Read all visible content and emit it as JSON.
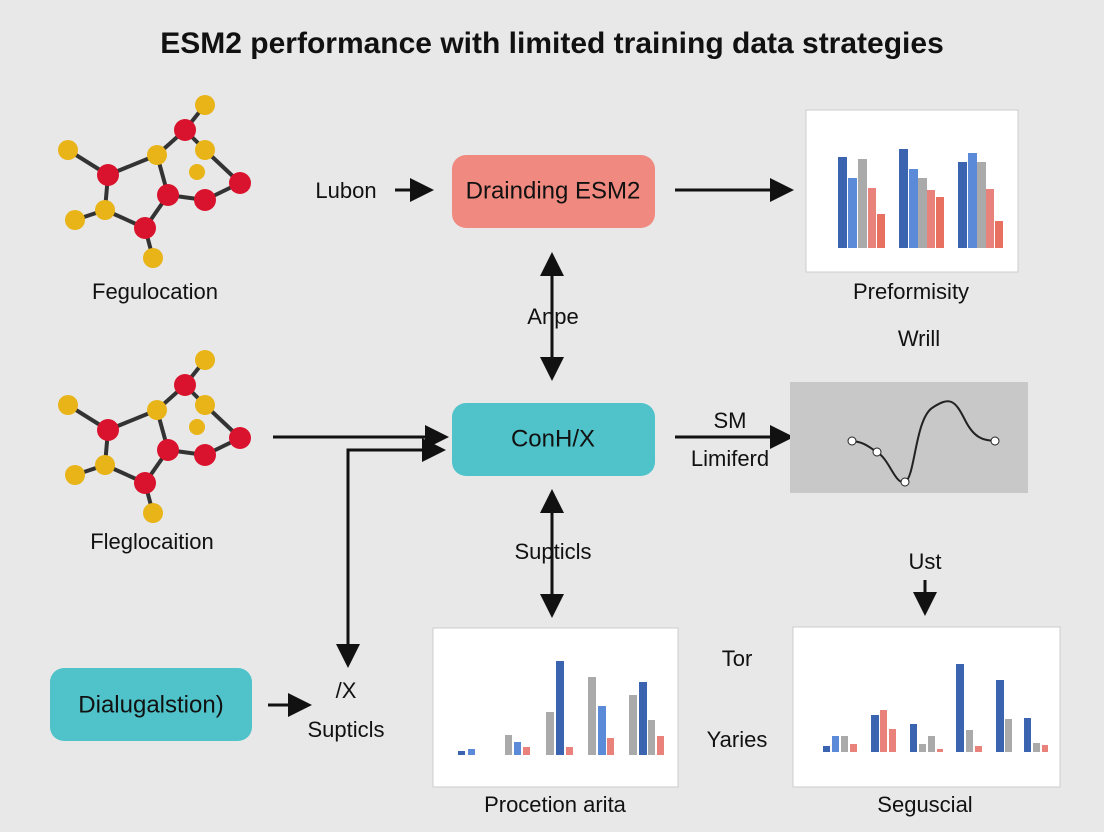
{
  "title": "ESM2 performance with limited training data strategies",
  "molecules": [
    {
      "label": "Fegulocation"
    },
    {
      "label": "Fleglocaition"
    }
  ],
  "nodes": [
    {
      "label": "Drainding ESM2"
    },
    {
      "label": "ConH/X"
    },
    {
      "label": "Dialugalstion)"
    }
  ],
  "edge_labels": [
    "Lubon",
    "Anpe",
    "SM",
    "Limiferd",
    "Supticls",
    "/X",
    "Supticls",
    "Ust"
  ],
  "charts": [
    {
      "label": "Preformisity"
    },
    {
      "label": "Procetion arita"
    },
    {
      "label": "Seguscial"
    }
  ],
  "side_labels": [
    "Wrill",
    "Tor",
    "Yaries"
  ]
}
